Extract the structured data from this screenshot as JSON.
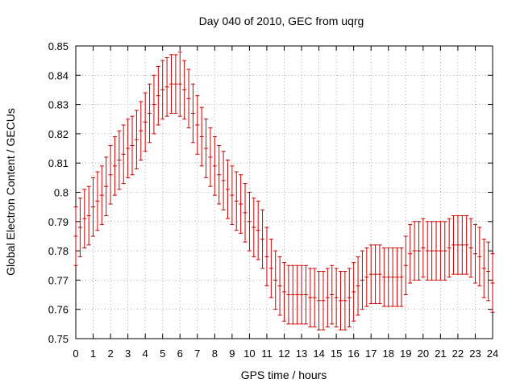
{
  "chart_data": {
    "type": "line",
    "title": "Day 040 of 2010, GEC from uqrg",
    "xlabel": "GPS time / hours",
    "ylabel": "Global Electron Content / GECUs",
    "xlim": [
      0,
      24
    ],
    "ylim": [
      0.75,
      0.85
    ],
    "x_ticks": [
      "0",
      "1",
      "2",
      "3",
      "4",
      "5",
      "6",
      "7",
      "8",
      "9",
      "10",
      "11",
      "12",
      "13",
      "14",
      "15",
      "16",
      "17",
      "18",
      "19",
      "20",
      "21",
      "22",
      "23",
      "24"
    ],
    "y_ticks": [
      "0.75",
      "0.76",
      "0.77",
      "0.78",
      "0.79",
      "0.8",
      "0.81",
      "0.82",
      "0.83",
      "0.84",
      "0.85"
    ],
    "grid": true,
    "series_color": "#cc0000",
    "series": [
      {
        "x": [
          0.0,
          0.25,
          0.5,
          0.75,
          1.0,
          1.25,
          1.5,
          1.75,
          2.0,
          2.25,
          2.5,
          2.75,
          3.0,
          3.25,
          3.5,
          3.75,
          4.0,
          4.25,
          4.5,
          4.75,
          5.0,
          5.25,
          5.5,
          5.75,
          6.0,
          6.25,
          6.5,
          6.75,
          7.0,
          7.25,
          7.5,
          7.75,
          8.0,
          8.25,
          8.5,
          8.75,
          9.0,
          9.25,
          9.5,
          9.75,
          10.0,
          10.25,
          10.5,
          10.75,
          11.0,
          11.25,
          11.5,
          11.75,
          12.0,
          12.25,
          12.5,
          12.75,
          13.0,
          13.25,
          13.5,
          13.75,
          14.0,
          14.25,
          14.5,
          14.75,
          15.0,
          15.25,
          15.5,
          15.75,
          16.0,
          16.25,
          16.5,
          16.75,
          17.0,
          17.25,
          17.5,
          17.75,
          18.0,
          18.25,
          18.5,
          18.75,
          19.0,
          19.25,
          19.5,
          19.75,
          20.0,
          20.25,
          20.5,
          20.75,
          21.0,
          21.25,
          21.5,
          21.75,
          22.0,
          22.25,
          22.5,
          22.75,
          23.0,
          23.25,
          23.5,
          23.75,
          24.0
        ],
        "y": [
          0.785,
          0.788,
          0.791,
          0.792,
          0.795,
          0.797,
          0.799,
          0.802,
          0.806,
          0.809,
          0.811,
          0.813,
          0.815,
          0.816,
          0.818,
          0.821,
          0.824,
          0.827,
          0.83,
          0.833,
          0.835,
          0.836,
          0.837,
          0.837,
          0.837,
          0.835,
          0.832,
          0.827,
          0.823,
          0.819,
          0.815,
          0.812,
          0.809,
          0.806,
          0.804,
          0.801,
          0.799,
          0.797,
          0.796,
          0.793,
          0.79,
          0.788,
          0.787,
          0.784,
          0.778,
          0.774,
          0.77,
          0.768,
          0.766,
          0.765,
          0.765,
          0.765,
          0.765,
          0.765,
          0.764,
          0.764,
          0.763,
          0.763,
          0.764,
          0.765,
          0.764,
          0.763,
          0.763,
          0.764,
          0.766,
          0.768,
          0.77,
          0.771,
          0.772,
          0.772,
          0.772,
          0.771,
          0.771,
          0.771,
          0.771,
          0.771,
          0.775,
          0.779,
          0.78,
          0.78,
          0.781,
          0.78,
          0.78,
          0.78,
          0.78,
          0.78,
          0.781,
          0.782,
          0.782,
          0.782,
          0.782,
          0.781,
          0.779,
          0.778,
          0.774,
          0.773,
          0.769
        ],
        "err": [
          0.01,
          0.01,
          0.01,
          0.01,
          0.01,
          0.01,
          0.01,
          0.01,
          0.01,
          0.01,
          0.01,
          0.01,
          0.01,
          0.01,
          0.01,
          0.01,
          0.01,
          0.01,
          0.01,
          0.01,
          0.01,
          0.01,
          0.01,
          0.01,
          0.011,
          0.01,
          0.01,
          0.01,
          0.01,
          0.01,
          0.01,
          0.01,
          0.01,
          0.01,
          0.01,
          0.01,
          0.01,
          0.01,
          0.01,
          0.01,
          0.01,
          0.01,
          0.01,
          0.01,
          0.01,
          0.01,
          0.01,
          0.01,
          0.01,
          0.01,
          0.01,
          0.01,
          0.01,
          0.01,
          0.01,
          0.01,
          0.01,
          0.01,
          0.01,
          0.01,
          0.01,
          0.01,
          0.01,
          0.01,
          0.01,
          0.01,
          0.01,
          0.01,
          0.01,
          0.01,
          0.01,
          0.01,
          0.01,
          0.01,
          0.01,
          0.01,
          0.01,
          0.01,
          0.01,
          0.01,
          0.01,
          0.01,
          0.01,
          0.01,
          0.01,
          0.01,
          0.01,
          0.01,
          0.01,
          0.01,
          0.01,
          0.01,
          0.01,
          0.01,
          0.01,
          0.01,
          0.01
        ]
      }
    ]
  }
}
